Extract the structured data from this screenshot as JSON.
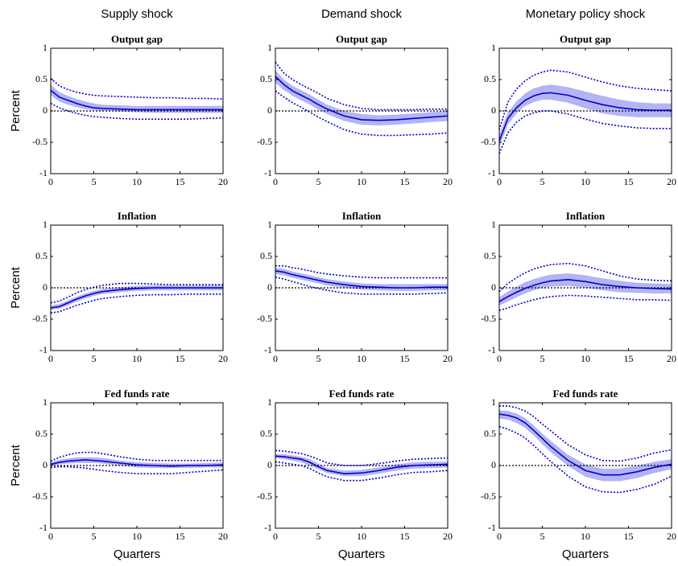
{
  "chart_data": [
    {
      "type": "line",
      "column_title": "Supply shock",
      "title": "Output gap",
      "ylabel": "Percent",
      "x": [
        0,
        1,
        2,
        3,
        4,
        5,
        6,
        8,
        10,
        12,
        14,
        16,
        18,
        20
      ],
      "xlim": [
        0,
        20
      ],
      "xticks": [
        0,
        5,
        10,
        15,
        20
      ],
      "ylim": [
        -1,
        1
      ],
      "yticks": [
        -1,
        -0.5,
        0,
        0.5,
        1
      ],
      "zero_line": true,
      "line_color": "#0000cc",
      "band_color": "#b4b4f4",
      "median": [
        0.33,
        0.22,
        0.17,
        0.12,
        0.08,
        0.05,
        0.04,
        0.03,
        0.02,
        0.02,
        0.02,
        0.02,
        0.02,
        0.02
      ],
      "inner_lower": [
        0.25,
        0.15,
        0.1,
        0.06,
        0.03,
        0.01,
        0,
        -0.01,
        -0.02,
        -0.03,
        -0.03,
        -0.03,
        -0.03,
        -0.03
      ],
      "inner_upper": [
        0.42,
        0.3,
        0.24,
        0.19,
        0.15,
        0.12,
        0.1,
        0.09,
        0.08,
        0.08,
        0.08,
        0.08,
        0.08,
        0.08
      ],
      "outer_lower": [
        0.12,
        0.05,
        0,
        -0.04,
        -0.07,
        -0.09,
        -0.1,
        -0.12,
        -0.13,
        -0.13,
        -0.13,
        -0.13,
        -0.12,
        -0.11
      ],
      "outer_upper": [
        0.52,
        0.4,
        0.34,
        0.3,
        0.27,
        0.25,
        0.24,
        0.23,
        0.22,
        0.21,
        0.21,
        0.2,
        0.2,
        0.19
      ]
    },
    {
      "type": "line",
      "column_title": "Demand shock",
      "title": "Output gap",
      "x": [
        0,
        1,
        2,
        3,
        4,
        5,
        6,
        8,
        10,
        12,
        14,
        16,
        18,
        20
      ],
      "xlim": [
        0,
        20
      ],
      "xticks": [
        0,
        5,
        10,
        15,
        20
      ],
      "ylim": [
        -1,
        1
      ],
      "yticks": [
        -1,
        -0.5,
        0,
        0.5,
        1
      ],
      "zero_line": true,
      "line_color": "#0000cc",
      "band_color": "#b4b4f4",
      "median": [
        0.55,
        0.42,
        0.32,
        0.25,
        0.18,
        0.1,
        0.03,
        -0.08,
        -0.14,
        -0.15,
        -0.14,
        -0.12,
        -0.1,
        -0.08
      ],
      "inner_lower": [
        0.45,
        0.33,
        0.24,
        0.17,
        0.1,
        0.02,
        -0.05,
        -0.16,
        -0.22,
        -0.23,
        -0.22,
        -0.2,
        -0.18,
        -0.16
      ],
      "inner_upper": [
        0.65,
        0.5,
        0.4,
        0.33,
        0.26,
        0.18,
        0.1,
        0,
        -0.05,
        -0.07,
        -0.06,
        -0.04,
        -0.02,
        0
      ],
      "outer_lower": [
        0.32,
        0.22,
        0.13,
        0.06,
        -0.02,
        -0.1,
        -0.17,
        -0.3,
        -0.37,
        -0.39,
        -0.39,
        -0.38,
        -0.37,
        -0.35
      ],
      "outer_upper": [
        0.78,
        0.6,
        0.5,
        0.42,
        0.35,
        0.28,
        0.2,
        0.1,
        0.04,
        0.02,
        0.02,
        0.02,
        0.03,
        0.03
      ]
    },
    {
      "type": "line",
      "column_title": "Monetary policy shock",
      "title": "Output gap",
      "x": [
        0,
        1,
        2,
        3,
        4,
        5,
        6,
        8,
        10,
        12,
        14,
        16,
        18,
        20
      ],
      "xlim": [
        0,
        20
      ],
      "xticks": [
        0,
        5,
        10,
        15,
        20
      ],
      "ylim": [
        -1,
        1
      ],
      "yticks": [
        -1,
        -0.5,
        0,
        0.5,
        1
      ],
      "zero_line": true,
      "line_color": "#0000cc",
      "band_color": "#b4b4f4",
      "median": [
        -0.48,
        -0.12,
        0.05,
        0.17,
        0.24,
        0.28,
        0.29,
        0.25,
        0.17,
        0.1,
        0.05,
        0.02,
        0.01,
        0.01
      ],
      "inner_lower": [
        -0.58,
        -0.22,
        -0.04,
        0.08,
        0.14,
        0.18,
        0.18,
        0.13,
        0.04,
        -0.04,
        -0.08,
        -0.1,
        -0.1,
        -0.1
      ],
      "inner_upper": [
        -0.38,
        -0.02,
        0.15,
        0.28,
        0.36,
        0.4,
        0.42,
        0.38,
        0.31,
        0.24,
        0.18,
        0.14,
        0.12,
        0.12
      ],
      "outer_lower": [
        -0.68,
        -0.35,
        -0.18,
        -0.08,
        -0.03,
        0,
        0,
        -0.05,
        -0.13,
        -0.2,
        -0.24,
        -0.27,
        -0.28,
        -0.28
      ],
      "outer_upper": [
        -0.3,
        0.14,
        0.35,
        0.48,
        0.57,
        0.62,
        0.65,
        0.62,
        0.54,
        0.46,
        0.4,
        0.36,
        0.34,
        0.32
      ]
    },
    {
      "type": "line",
      "title": "Inflation",
      "ylabel": "Percent",
      "x": [
        0,
        1,
        2,
        3,
        4,
        5,
        6,
        8,
        10,
        12,
        14,
        16,
        18,
        20
      ],
      "xlim": [
        0,
        20
      ],
      "xticks": [
        0,
        5,
        10,
        15,
        20
      ],
      "ylim": [
        -1,
        1
      ],
      "yticks": [
        -1,
        -0.5,
        0,
        0.5,
        1
      ],
      "zero_line": true,
      "line_color": "#0000cc",
      "band_color": "#b4b4f4",
      "median": [
        -0.32,
        -0.3,
        -0.24,
        -0.18,
        -0.13,
        -0.09,
        -0.06,
        -0.03,
        -0.01,
        0,
        0,
        0,
        0,
        0
      ],
      "inner_lower": [
        -0.35,
        -0.33,
        -0.28,
        -0.22,
        -0.17,
        -0.13,
        -0.1,
        -0.07,
        -0.05,
        -0.04,
        -0.04,
        -0.04,
        -0.04,
        -0.04
      ],
      "inner_upper": [
        -0.28,
        -0.26,
        -0.2,
        -0.14,
        -0.09,
        -0.05,
        -0.02,
        0.01,
        0.03,
        0.04,
        0.04,
        0.04,
        0.04,
        0.04
      ],
      "outer_lower": [
        -0.4,
        -0.38,
        -0.33,
        -0.28,
        -0.24,
        -0.2,
        -0.17,
        -0.14,
        -0.12,
        -0.11,
        -0.11,
        -0.1,
        -0.1,
        -0.1
      ],
      "outer_upper": [
        -0.24,
        -0.21,
        -0.15,
        -0.08,
        -0.03,
        0.01,
        0.04,
        0.07,
        0.07,
        0.06,
        0.05,
        0.05,
        0.05,
        0.05
      ]
    },
    {
      "type": "line",
      "title": "Inflation",
      "x": [
        0,
        1,
        2,
        3,
        4,
        5,
        6,
        8,
        10,
        12,
        14,
        16,
        18,
        20
      ],
      "xlim": [
        0,
        20
      ],
      "xticks": [
        0,
        5,
        10,
        15,
        20
      ],
      "ylim": [
        -1,
        1
      ],
      "yticks": [
        -1,
        -0.5,
        0,
        0.5,
        1
      ],
      "zero_line": true,
      "line_color": "#0000cc",
      "band_color": "#b4b4f4",
      "median": [
        0.27,
        0.25,
        0.21,
        0.18,
        0.15,
        0.12,
        0.09,
        0.05,
        0.02,
        0.01,
        0,
        0,
        0.01,
        0.01
      ],
      "inner_lower": [
        0.22,
        0.2,
        0.16,
        0.13,
        0.1,
        0.07,
        0.04,
        0,
        -0.03,
        -0.04,
        -0.05,
        -0.05,
        -0.04,
        -0.04
      ],
      "inner_upper": [
        0.32,
        0.3,
        0.26,
        0.23,
        0.2,
        0.17,
        0.14,
        0.1,
        0.07,
        0.06,
        0.06,
        0.06,
        0.06,
        0.06
      ],
      "outer_lower": [
        0.17,
        0.14,
        0.1,
        0.06,
        0.02,
        -0.01,
        -0.04,
        -0.08,
        -0.1,
        -0.1,
        -0.1,
        -0.1,
        -0.09,
        -0.08
      ],
      "outer_upper": [
        0.35,
        0.35,
        0.32,
        0.3,
        0.27,
        0.24,
        0.22,
        0.19,
        0.17,
        0.16,
        0.16,
        0.16,
        0.16,
        0.16
      ]
    },
    {
      "type": "line",
      "title": "Inflation",
      "x": [
        0,
        1,
        2,
        3,
        4,
        5,
        6,
        8,
        10,
        12,
        14,
        16,
        18,
        20
      ],
      "xlim": [
        0,
        20
      ],
      "xticks": [
        0,
        5,
        10,
        15,
        20
      ],
      "ylim": [
        -1,
        1
      ],
      "yticks": [
        -1,
        -0.5,
        0,
        0.5,
        1
      ],
      "zero_line": true,
      "line_color": "#0000cc",
      "band_color": "#b4b4f4",
      "median": [
        -0.22,
        -0.14,
        -0.07,
        -0.01,
        0.04,
        0.08,
        0.11,
        0.13,
        0.1,
        0.05,
        0.02,
        0,
        -0.01,
        -0.02
      ],
      "inner_lower": [
        -0.28,
        -0.22,
        -0.15,
        -0.09,
        -0.04,
        0,
        0.02,
        0.03,
        0,
        -0.04,
        -0.07,
        -0.08,
        -0.09,
        -0.09
      ],
      "inner_upper": [
        -0.15,
        -0.06,
        0.02,
        0.09,
        0.14,
        0.18,
        0.21,
        0.23,
        0.2,
        0.15,
        0.11,
        0.08,
        0.07,
        0.06
      ],
      "outer_lower": [
        -0.36,
        -0.32,
        -0.27,
        -0.23,
        -0.19,
        -0.16,
        -0.14,
        -0.12,
        -0.13,
        -0.15,
        -0.17,
        -0.19,
        -0.19,
        -0.2
      ],
      "outer_upper": [
        -0.06,
        0.07,
        0.16,
        0.24,
        0.3,
        0.34,
        0.37,
        0.39,
        0.35,
        0.27,
        0.19,
        0.14,
        0.12,
        0.11
      ]
    },
    {
      "type": "line",
      "title": "Fed funds rate",
      "ylabel": "Percent",
      "xlabel": "Quarters",
      "x": [
        0,
        1,
        2,
        3,
        4,
        5,
        6,
        8,
        10,
        12,
        14,
        16,
        18,
        20
      ],
      "xlim": [
        0,
        20
      ],
      "xticks": [
        0,
        5,
        10,
        15,
        20
      ],
      "ylim": [
        -1,
        1
      ],
      "yticks": [
        -1,
        -0.5,
        0,
        0.5,
        1
      ],
      "zero_line": true,
      "line_color": "#0000cc",
      "band_color": "#b4b4f4",
      "median": [
        0.02,
        0.05,
        0.07,
        0.08,
        0.09,
        0.08,
        0.07,
        0.04,
        0.01,
        0,
        -0.01,
        0,
        0,
        0.01
      ],
      "inner_lower": [
        -0.01,
        0.02,
        0.03,
        0.04,
        0.04,
        0.04,
        0.03,
        0,
        -0.03,
        -0.04,
        -0.04,
        -0.04,
        -0.03,
        -0.03
      ],
      "inner_upper": [
        0.05,
        0.09,
        0.11,
        0.13,
        0.13,
        0.13,
        0.12,
        0.08,
        0.05,
        0.04,
        0.03,
        0.03,
        0.04,
        0.05
      ],
      "outer_lower": [
        -0.03,
        -0.02,
        -0.02,
        -0.03,
        -0.04,
        -0.06,
        -0.08,
        -0.11,
        -0.13,
        -0.13,
        -0.13,
        -0.11,
        -0.09,
        -0.07
      ],
      "outer_upper": [
        0.07,
        0.13,
        0.17,
        0.2,
        0.21,
        0.21,
        0.19,
        0.14,
        0.1,
        0.08,
        0.08,
        0.08,
        0.08,
        0.08
      ]
    },
    {
      "type": "line",
      "title": "Fed funds rate",
      "xlabel": "Quarters",
      "x": [
        0,
        1,
        2,
        3,
        4,
        5,
        6,
        8,
        10,
        12,
        14,
        16,
        18,
        20
      ],
      "xlim": [
        0,
        20
      ],
      "xticks": [
        0,
        5,
        10,
        15,
        20
      ],
      "ylim": [
        -1,
        1
      ],
      "yticks": [
        -1,
        -0.5,
        0,
        0.5,
        1
      ],
      "zero_line": true,
      "line_color": "#0000cc",
      "band_color": "#b4b4f4",
      "median": [
        0.15,
        0.14,
        0.12,
        0.1,
        0.05,
        -0.02,
        -0.08,
        -0.13,
        -0.12,
        -0.08,
        -0.03,
        0,
        0.01,
        0.02
      ],
      "inner_lower": [
        0.12,
        0.1,
        0.08,
        0.05,
        0,
        -0.06,
        -0.12,
        -0.17,
        -0.17,
        -0.13,
        -0.08,
        -0.05,
        -0.04,
        -0.03
      ],
      "inner_upper": [
        0.18,
        0.18,
        0.16,
        0.14,
        0.1,
        0.03,
        -0.04,
        -0.08,
        -0.07,
        -0.03,
        0.02,
        0.05,
        0.06,
        0.06
      ],
      "outer_lower": [
        0.06,
        0.04,
        0.02,
        0,
        -0.05,
        -0.12,
        -0.18,
        -0.24,
        -0.24,
        -0.2,
        -0.15,
        -0.11,
        -0.1,
        -0.08
      ],
      "outer_upper": [
        0.24,
        0.23,
        0.21,
        0.19,
        0.15,
        0.1,
        0.04,
        0,
        0,
        0.03,
        0.07,
        0.1,
        0.11,
        0.12
      ]
    },
    {
      "type": "line",
      "title": "Fed funds rate",
      "xlabel": "Quarters",
      "x": [
        0,
        1,
        2,
        3,
        4,
        5,
        6,
        8,
        10,
        12,
        14,
        16,
        18,
        20
      ],
      "xlim": [
        0,
        20
      ],
      "xticks": [
        0,
        5,
        10,
        15,
        20
      ],
      "ylim": [
        -1,
        1
      ],
      "yticks": [
        -1,
        -0.5,
        0,
        0.5,
        1
      ],
      "zero_line": true,
      "line_color": "#0000cc",
      "band_color": "#b4b4f4",
      "median": [
        0.82,
        0.8,
        0.76,
        0.68,
        0.56,
        0.43,
        0.3,
        0.08,
        -0.08,
        -0.15,
        -0.15,
        -0.1,
        -0.03,
        0.02
      ],
      "inner_lower": [
        0.75,
        0.73,
        0.68,
        0.6,
        0.48,
        0.34,
        0.21,
        -0.01,
        -0.18,
        -0.25,
        -0.25,
        -0.2,
        -0.12,
        -0.06
      ],
      "inner_upper": [
        0.88,
        0.87,
        0.83,
        0.76,
        0.64,
        0.51,
        0.39,
        0.17,
        0.02,
        -0.05,
        -0.05,
        0,
        0.06,
        0.1
      ],
      "outer_lower": [
        0.62,
        0.58,
        0.52,
        0.44,
        0.32,
        0.19,
        0.06,
        -0.17,
        -0.34,
        -0.42,
        -0.43,
        -0.38,
        -0.3,
        -0.17
      ],
      "outer_upper": [
        0.95,
        0.95,
        0.92,
        0.87,
        0.78,
        0.66,
        0.55,
        0.33,
        0.17,
        0.08,
        0.07,
        0.12,
        0.2,
        0.25
      ]
    }
  ]
}
